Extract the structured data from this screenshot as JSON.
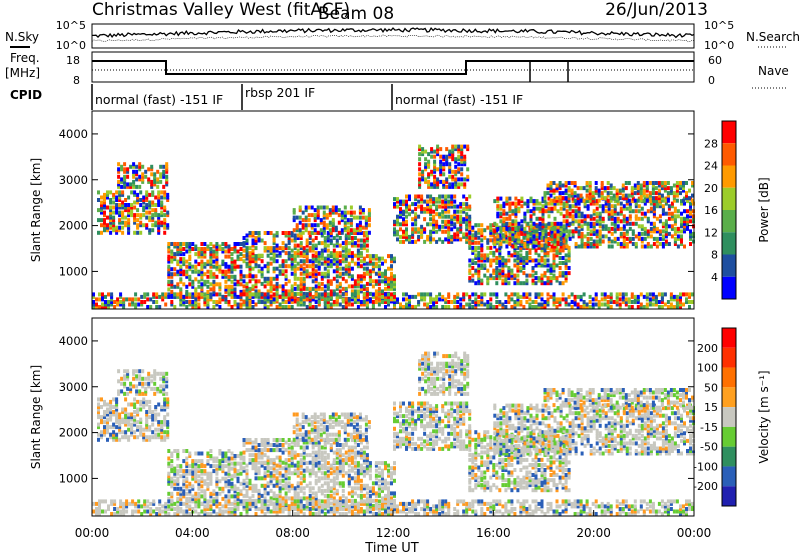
{
  "header": {
    "station": "Christmas Valley West (fitACF)",
    "beam": "Beam 08",
    "date": "26/Jun/2013"
  },
  "labels": {
    "nsky": "N.Sky",
    "nsearch": "N.Search",
    "freq_line1": "Freq.",
    "freq_line2": "[MHz]",
    "nave": "Nave",
    "cpid": "CPID"
  },
  "noise_axis": {
    "left_ticks": [
      "10^5",
      "10^0"
    ],
    "right_ticks": [
      "10^5",
      "10^0"
    ]
  },
  "freq_axis": {
    "left_ticks": [
      "18",
      "8"
    ],
    "right_ticks": [
      "60",
      "0"
    ]
  },
  "cpid_segments": [
    {
      "label": "normal (fast) -151 IF",
      "start": 0,
      "end": 6
    },
    {
      "label": "rbsp 201 IF",
      "start": 6,
      "end": 12
    },
    {
      "label": "normal (fast) -151 IF",
      "start": 12,
      "end": 24
    }
  ],
  "chart_data": [
    {
      "type": "heatmap",
      "name": "power",
      "ylabel": "Slant Range [km]",
      "xlim": [
        0,
        24
      ],
      "ylim": [
        180,
        4500
      ],
      "yticks": [
        "1000",
        "2000",
        "3000",
        "4000"
      ],
      "colorbar": {
        "title": "Power [dB]",
        "ticks": [
          "4",
          "8",
          "12",
          "16",
          "20",
          "24",
          "28"
        ],
        "colors": [
          "#0000ff",
          "#1e4fa0",
          "#2f8f5f",
          "#5aae4a",
          "#9ccc2a",
          "#ff9a00",
          "#ff5a00",
          "#ff0000"
        ]
      }
    },
    {
      "type": "heatmap",
      "name": "velocity",
      "ylabel": "Slant Range [km]",
      "xlabel": "Time UT",
      "xlim": [
        0,
        24
      ],
      "ylim": [
        180,
        4500
      ],
      "yticks": [
        "1000",
        "2000",
        "3000",
        "4000"
      ],
      "xticks": [
        "00:00",
        "04:00",
        "08:00",
        "12:00",
        "16:00",
        "20:00",
        "00:00"
      ],
      "colorbar": {
        "title": "Velocity [m s⁻¹]",
        "ticks": [
          "200",
          "100",
          "50",
          "15",
          "-15",
          "-50",
          "-100",
          "-200"
        ],
        "colors": [
          "#2020b0",
          "#2a5fb8",
          "#2f8f5f",
          "#66cc33",
          "#c8c8c0",
          "#ffa020",
          "#ff7000",
          "#ff3000",
          "#ff0000"
        ]
      }
    }
  ]
}
